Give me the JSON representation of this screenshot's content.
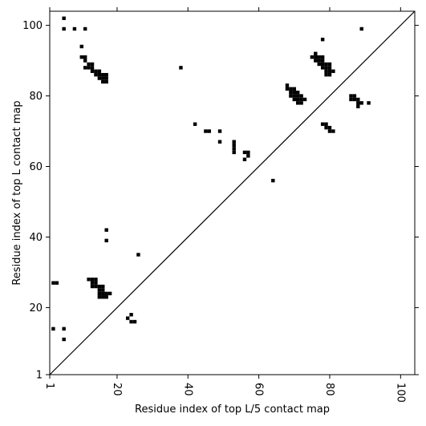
{
  "chart_data": {
    "type": "scatter",
    "title": "",
    "xlabel": "Residue index of top L/5 contact map",
    "ylabel": "Residue index of top L contact map",
    "xlim": [
      1,
      104
    ],
    "ylim": [
      1,
      104
    ],
    "xticks": [
      1,
      20,
      40,
      60,
      80,
      100
    ],
    "yticks": [
      1,
      20,
      40,
      60,
      80,
      100
    ],
    "xtick_labels": [
      "1",
      "20",
      "40",
      "60",
      "80",
      "100"
    ],
    "ytick_labels": [
      "1",
      "20",
      "40",
      "60",
      "80",
      "100"
    ],
    "diagonal": true,
    "grid": false,
    "marker": "square",
    "color": "#000000",
    "points": [
      [
        5,
        102
      ],
      [
        5,
        99
      ],
      [
        8,
        99
      ],
      [
        11,
        99
      ],
      [
        10,
        94
      ],
      [
        10,
        91
      ],
      [
        11,
        91
      ],
      [
        11,
        90
      ],
      [
        12,
        89
      ],
      [
        13,
        89
      ],
      [
        11,
        88
      ],
      [
        12,
        88
      ],
      [
        13,
        88
      ],
      [
        13,
        87
      ],
      [
        14,
        87
      ],
      [
        15,
        87
      ],
      [
        14,
        86
      ],
      [
        15,
        86
      ],
      [
        16,
        86
      ],
      [
        17,
        86
      ],
      [
        15,
        85
      ],
      [
        16,
        85
      ],
      [
        17,
        85
      ],
      [
        16,
        84
      ],
      [
        17,
        84
      ],
      [
        38,
        88
      ],
      [
        89,
        99
      ],
      [
        78,
        96
      ],
      [
        76,
        92
      ],
      [
        75,
        91
      ],
      [
        76,
        91
      ],
      [
        77,
        91
      ],
      [
        78,
        91
      ],
      [
        76,
        90
      ],
      [
        77,
        90
      ],
      [
        78,
        90
      ],
      [
        77,
        89
      ],
      [
        78,
        89
      ],
      [
        79,
        89
      ],
      [
        80,
        89
      ],
      [
        78,
        88
      ],
      [
        79,
        88
      ],
      [
        80,
        88
      ],
      [
        79,
        87
      ],
      [
        80,
        87
      ],
      [
        81,
        87
      ],
      [
        79,
        86
      ],
      [
        80,
        86
      ],
      [
        68,
        83
      ],
      [
        68,
        82
      ],
      [
        69,
        82
      ],
      [
        70,
        82
      ],
      [
        69,
        81
      ],
      [
        70,
        81
      ],
      [
        71,
        81
      ],
      [
        69,
        80
      ],
      [
        70,
        80
      ],
      [
        71,
        80
      ],
      [
        72,
        80
      ],
      [
        70,
        79
      ],
      [
        71,
        79
      ],
      [
        72,
        79
      ],
      [
        73,
        79
      ],
      [
        71,
        78
      ],
      [
        72,
        78
      ],
      [
        86,
        80
      ],
      [
        87,
        80
      ],
      [
        86,
        79
      ],
      [
        87,
        79
      ],
      [
        88,
        79
      ],
      [
        88,
        78
      ],
      [
        89,
        78
      ],
      [
        91,
        78
      ],
      [
        88,
        77
      ],
      [
        78,
        72
      ],
      [
        79,
        72
      ],
      [
        79,
        71
      ],
      [
        80,
        71
      ],
      [
        80,
        70
      ],
      [
        81,
        70
      ],
      [
        42,
        72
      ],
      [
        45,
        70
      ],
      [
        46,
        70
      ],
      [
        49,
        70
      ],
      [
        49,
        67
      ],
      [
        53,
        67
      ],
      [
        53,
        66
      ],
      [
        53,
        65
      ],
      [
        53,
        64
      ],
      [
        56,
        64
      ],
      [
        57,
        64
      ],
      [
        57,
        63
      ],
      [
        56,
        62
      ],
      [
        64,
        56
      ],
      [
        17,
        42
      ],
      [
        17,
        39
      ],
      [
        26,
        35
      ],
      [
        2,
        27
      ],
      [
        3,
        27
      ],
      [
        12,
        28
      ],
      [
        13,
        28
      ],
      [
        14,
        28
      ],
      [
        13,
        27
      ],
      [
        14,
        27
      ],
      [
        13,
        26
      ],
      [
        14,
        26
      ],
      [
        15,
        26
      ],
      [
        16,
        26
      ],
      [
        15,
        25
      ],
      [
        16,
        25
      ],
      [
        15,
        24
      ],
      [
        16,
        24
      ],
      [
        17,
        24
      ],
      [
        18,
        24
      ],
      [
        16,
        23
      ],
      [
        17,
        23
      ],
      [
        15,
        23
      ],
      [
        24,
        18
      ],
      [
        23,
        17
      ],
      [
        24,
        16
      ],
      [
        25,
        16
      ],
      [
        2,
        14
      ],
      [
        5,
        14
      ],
      [
        5,
        11
      ]
    ]
  }
}
